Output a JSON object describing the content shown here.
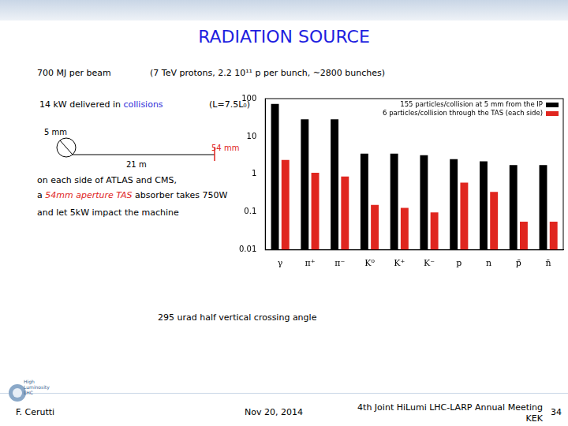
{
  "slide": {
    "title": "RADIATION SOURCE",
    "beam_energy": "700 MJ per beam",
    "beam_params": "(7 TeV protons, 2.2 10¹¹ p per bunch, ~2800 bunches)",
    "collisions": [
      "14 kW delivered in ",
      "collisions"
    ],
    "luminosity": "(L=7.5L₀)",
    "diagram": {
      "start": "5 mm",
      "end": "54 mm",
      "distance": "21 m"
    },
    "text_lines": [
      [
        "on each side of ATLAS and CMS,"
      ],
      [
        "a ",
        "54mm aperture TAS",
        " absorber takes 750W"
      ],
      [
        "and let 5kW impact the machine"
      ]
    ],
    "crossing": "295 urad half vertical crossing angle",
    "logo": [
      "High",
      "Luminosity",
      "LHC"
    ],
    "author": "F. Cerutti",
    "date": "Nov 20, 2014",
    "meeting": [
      "4th Joint HiLumi LHC-LARP Annual Meeting",
      "KEK"
    ],
    "page": "34"
  },
  "chart_data": {
    "type": "bar",
    "categories": [
      "γ",
      "π⁺",
      "π⁻",
      "K⁰",
      "K⁺",
      "K⁻",
      "p",
      "n",
      "p̄",
      "n̄"
    ],
    "series": [
      {
        "name": "155 particles/collision at 5 mm from the IP",
        "color": "#000000",
        "values": [
          72,
          28.5,
          28.5,
          3.5,
          3.5,
          3.2,
          2.5,
          2.2,
          1.75,
          1.75
        ]
      },
      {
        "name": "6 particles/collision through the TAS (each side)",
        "color": "#e0261f",
        "values": [
          2.4,
          1.1,
          0.87,
          0.155,
          0.13,
          0.098,
          0.6,
          0.34,
          0.056,
          0.056
        ]
      }
    ],
    "log": "y",
    "ylim": [
      0.01,
      100
    ],
    "yticks": [
      0.01,
      0.1,
      1,
      10,
      100
    ],
    "grid": false,
    "legend": "upper right"
  }
}
